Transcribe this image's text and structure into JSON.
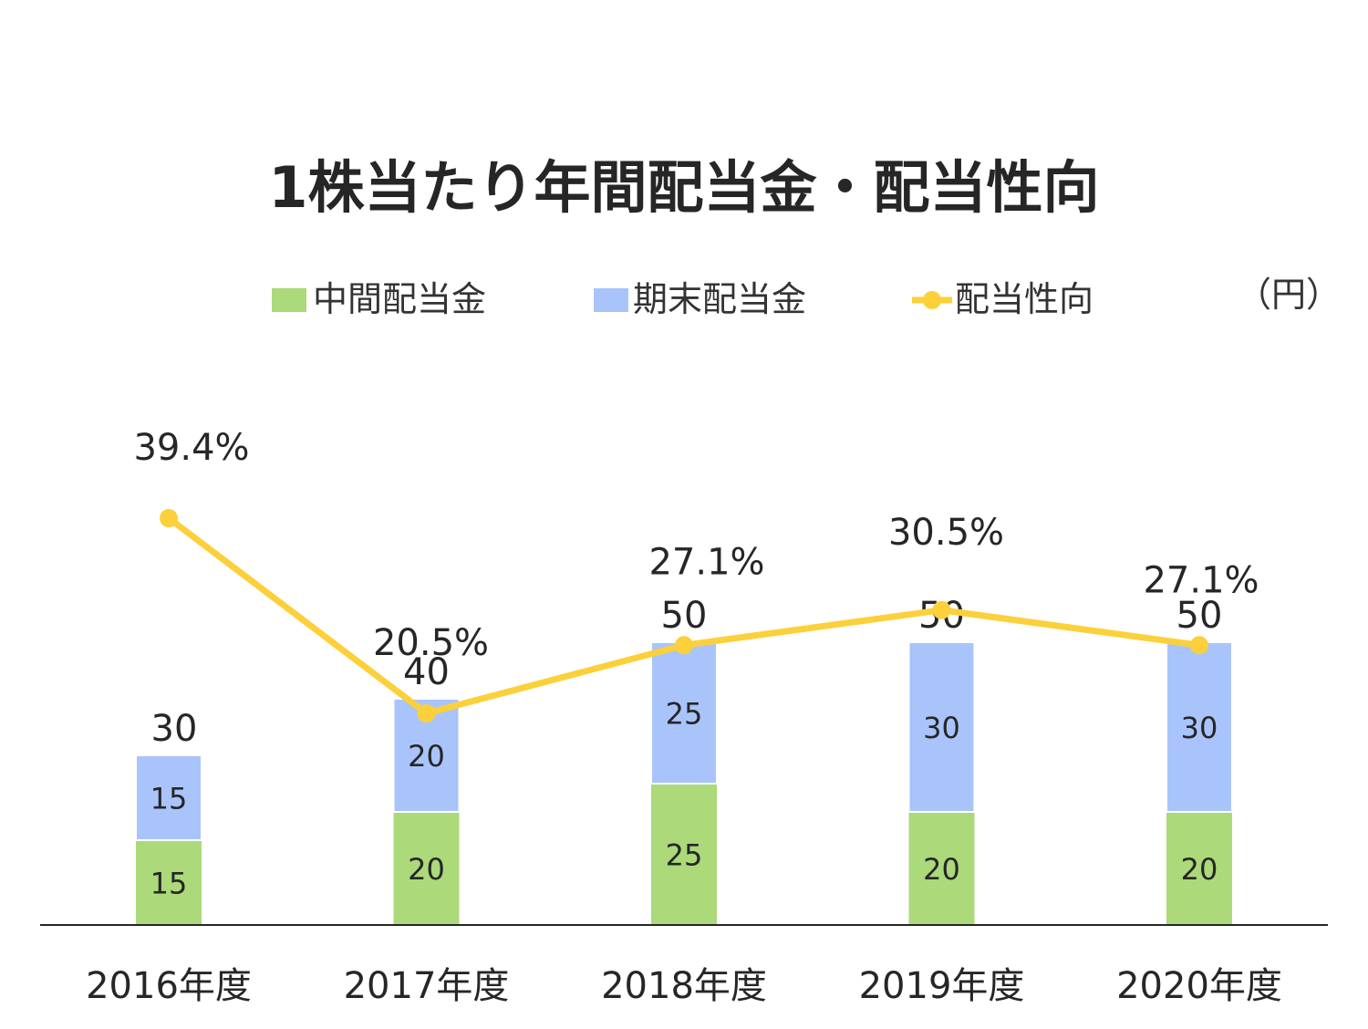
{
  "chart_data": {
    "type": "bar",
    "stacked": true,
    "title": "1株当たり年間配当金・配当性向",
    "unit": "（円）",
    "categories": [
      "2016年度",
      "2017年度",
      "2018年度",
      "2019年度",
      "2020年度"
    ],
    "series": [
      {
        "name": "中間配当金",
        "kind": "bar",
        "color": "#acd979",
        "values": [
          15,
          20,
          25,
          20,
          20
        ]
      },
      {
        "name": "期末配当金",
        "kind": "bar",
        "color": "#a9c4fb",
        "values": [
          15,
          20,
          25,
          30,
          30
        ]
      },
      {
        "name": "配当性向",
        "kind": "line",
        "color": "#fcd03b",
        "values": [
          39.4,
          20.5,
          27.1,
          30.5,
          27.1
        ],
        "labels": [
          "39.4%",
          "20.5%",
          "27.1%",
          "30.5%",
          "27.1%"
        ]
      }
    ],
    "totals": [
      30,
      40,
      50,
      50,
      50
    ],
    "ylim_bar": [
      0,
      130
    ],
    "ylim_ratio": [
      0,
      55
    ],
    "legend_position": "top",
    "grid": false
  }
}
